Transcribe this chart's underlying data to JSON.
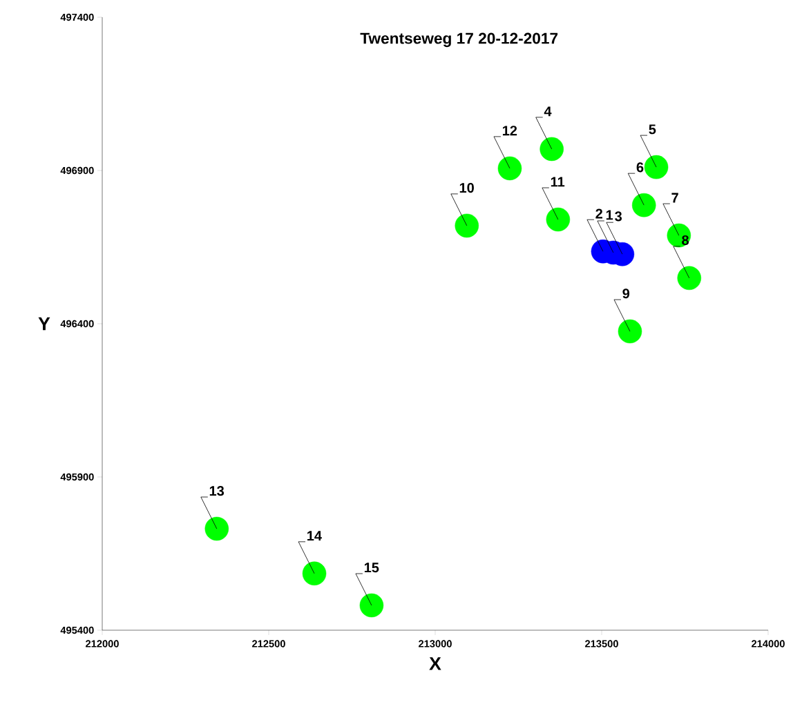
{
  "chart_data": {
    "type": "scatter",
    "title": "Twentseweg 17 20-12-2017",
    "xlabel": "X",
    "ylabel": "Y",
    "xlim": [
      212000,
      214000
    ],
    "ylim": [
      495400,
      497400
    ],
    "xticks": [
      212000,
      212500,
      213000,
      213500,
      214000
    ],
    "yticks": [
      495400,
      495900,
      496400,
      496900,
      497400
    ],
    "marker": "circle",
    "series": [
      {
        "color": "#0000ff",
        "x": [
          213504,
          213562,
          213535
        ],
        "values": [
          496636,
          496627,
          496632
        ]
      },
      {
        "color": "#00ff00",
        "x": [
          213350,
          213664,
          213627,
          213732,
          213763,
          213585,
          213095,
          213369,
          213224,
          212344,
          212637,
          212809
        ],
        "values": [
          496970,
          496911,
          496787,
          496688,
          496549,
          496375,
          496720,
          496740,
          496907,
          495731,
          495585,
          495481
        ]
      }
    ],
    "annotations": [
      {
        "text": "1",
        "x": 213535,
        "y": 496632
      },
      {
        "text": "2",
        "x": 213504,
        "y": 496636
      },
      {
        "text": "3",
        "x": 213562,
        "y": 496627
      },
      {
        "text": "4",
        "x": 213350,
        "y": 496970
      },
      {
        "text": "5",
        "x": 213664,
        "y": 496911
      },
      {
        "text": "6",
        "x": 213627,
        "y": 496787
      },
      {
        "text": "7",
        "x": 213732,
        "y": 496688
      },
      {
        "text": "8",
        "x": 213763,
        "y": 496549
      },
      {
        "text": "9",
        "x": 213585,
        "y": 496375
      },
      {
        "text": "10",
        "x": 213095,
        "y": 496720
      },
      {
        "text": "11",
        "x": 213369,
        "y": 496740
      },
      {
        "text": "12",
        "x": 213224,
        "y": 496907
      },
      {
        "text": "13",
        "x": 212344,
        "y": 495731
      },
      {
        "text": "14",
        "x": 212637,
        "y": 495585
      },
      {
        "text": "15",
        "x": 212809,
        "y": 495481
      }
    ]
  }
}
